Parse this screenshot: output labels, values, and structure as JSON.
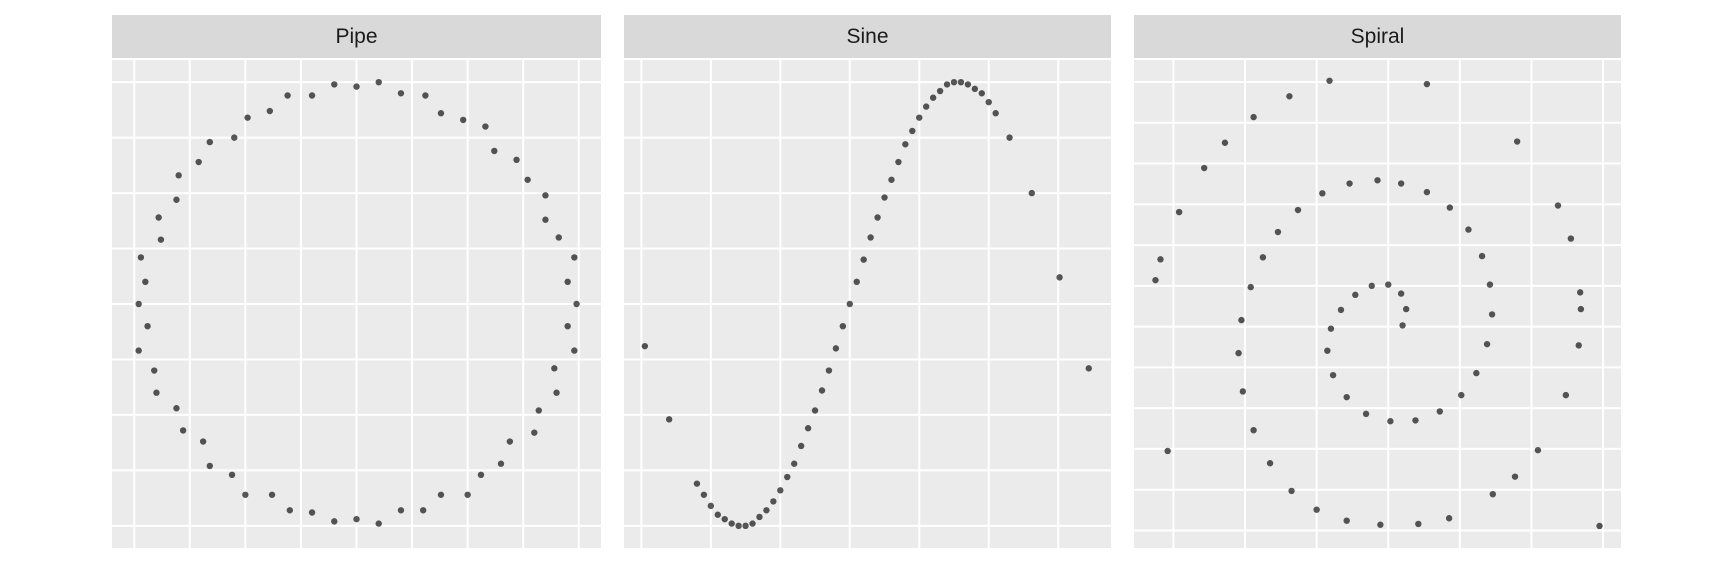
{
  "chart_data": [
    {
      "type": "scatter",
      "title": "Pipe",
      "color": "#000000",
      "opacity": 0.65,
      "grid": true,
      "xlim": [
        -1.1,
        1.1
      ],
      "ylim": [
        -1.1,
        1.1
      ],
      "xticks": [
        -1,
        -0.75,
        -0.5,
        -0.25,
        0,
        0.25,
        0.5,
        0.75,
        1
      ],
      "yticks": [
        -1,
        -0.75,
        -0.5,
        -0.25,
        0,
        0.25,
        0.5,
        0.75,
        1
      ],
      "x": [
        0.99,
        0.95,
        0.98,
        0.91,
        0.85,
        0.85,
        0.77,
        0.72,
        0.62,
        0.58,
        0.48,
        0.38,
        0.31,
        0.2,
        0.1,
        0.0,
        -0.1,
        -0.2,
        -0.31,
        -0.39,
        -0.49,
        -0.55,
        -0.66,
        -0.71,
        -0.8,
        -0.81,
        -0.89,
        -0.88,
        -0.97,
        -0.95,
        -0.98,
        -0.94,
        -0.98,
        -0.91,
        -0.9,
        -0.81,
        -0.78,
        -0.69,
        -0.66,
        -0.56,
        -0.5,
        -0.38,
        -0.3,
        -0.2,
        -0.1,
        0.0,
        0.1,
        0.2,
        0.3,
        0.38,
        0.5,
        0.56,
        0.65,
        0.69,
        0.8,
        0.82,
        0.9,
        0.89,
        0.98,
        0.95
      ],
      "y": [
        0.0,
        0.1,
        0.21,
        0.3,
        0.38,
        0.49,
        0.56,
        0.65,
        0.69,
        0.8,
        0.83,
        0.86,
        0.94,
        0.95,
        1.0,
        0.98,
        0.99,
        0.94,
        0.94,
        0.87,
        0.84,
        0.75,
        0.73,
        0.64,
        0.58,
        0.47,
        0.39,
        0.29,
        0.21,
        0.1,
        0.0,
        -0.1,
        -0.21,
        -0.3,
        -0.4,
        -0.47,
        -0.57,
        -0.62,
        -0.73,
        -0.77,
        -0.86,
        -0.86,
        -0.93,
        -0.94,
        -0.98,
        -0.97,
        -0.99,
        -0.93,
        -0.93,
        -0.86,
        -0.86,
        -0.77,
        -0.72,
        -0.62,
        -0.58,
        -0.48,
        -0.4,
        -0.29,
        -0.21,
        -0.1
      ]
    },
    {
      "type": "scatter",
      "title": "Sine",
      "color": "#000000",
      "opacity": 0.65,
      "grid": true,
      "xlim": [
        -3.25,
        3.76
      ],
      "ylim": [
        -1.1,
        1.1
      ],
      "xticks": [
        -3,
        -2,
        -1,
        0,
        1,
        2,
        3
      ],
      "yticks": [
        -1,
        -0.75,
        -0.5,
        -0.25,
        0,
        0.25,
        0.5,
        0.75,
        1
      ],
      "x": [
        -2.95,
        -2.6,
        -2.2,
        -2.1,
        -2.0,
        -1.9,
        -1.8,
        -1.7,
        -1.6,
        -1.5,
        -1.4,
        -1.3,
        -1.2,
        -1.1,
        -1.0,
        -0.9,
        -0.8,
        -0.7,
        -0.6,
        -0.5,
        -0.4,
        -0.3,
        -0.2,
        -0.1,
        0,
        0.1,
        0.2,
        0.3,
        0.4,
        0.5,
        0.6,
        0.7,
        0.8,
        0.9,
        1.0,
        1.1,
        1.2,
        1.3,
        1.4,
        1.5,
        1.6,
        1.7,
        1.8,
        1.9,
        2.0,
        2.1,
        2.3,
        2.62,
        3.02,
        3.44
      ],
      "y": [
        -0.19,
        -0.52,
        -0.81,
        -0.86,
        -0.91,
        -0.95,
        -0.97,
        -0.99,
        -1.0,
        -1.0,
        -0.99,
        -0.96,
        -0.93,
        -0.89,
        -0.84,
        -0.78,
        -0.72,
        -0.64,
        -0.56,
        -0.48,
        -0.39,
        -0.3,
        -0.2,
        -0.1,
        0,
        0.1,
        0.2,
        0.3,
        0.39,
        0.48,
        0.56,
        0.64,
        0.72,
        0.78,
        0.84,
        0.89,
        0.93,
        0.96,
        0.99,
        1.0,
        1.0,
        0.99,
        0.97,
        0.95,
        0.91,
        0.86,
        0.75,
        0.5,
        0.12,
        -0.29
      ]
    },
    {
      "type": "scatter",
      "title": "Spiral",
      "color": "#000000",
      "opacity": 0.65,
      "grid": true,
      "xlim": [
        -3.55,
        3.25
      ],
      "ylim": [
        -5.43,
        6.54
      ],
      "xticks": [
        -3,
        -2,
        -1,
        0,
        1,
        2,
        3
      ],
      "yticks": [
        -5,
        -4,
        -3,
        -2,
        -1,
        0,
        1,
        2,
        3,
        4,
        5,
        6
      ],
      "x": [
        0.2,
        0.25,
        0.18,
        0.0,
        -0.23,
        -0.46,
        -0.66,
        -0.8,
        -0.85,
        -0.77,
        -0.58,
        -0.31,
        0.03,
        0.38,
        0.72,
        1.02,
        1.23,
        1.38,
        1.45,
        1.42,
        1.31,
        1.12,
        0.86,
        0.54,
        0.18,
        -0.15,
        -0.54,
        -0.92,
        -1.26,
        -1.54,
        -1.75,
        -1.92,
        -2.05,
        -2.09,
        -2.03,
        -1.88,
        -1.65,
        -1.35,
        -1.0,
        -0.58,
        -0.11,
        0.42,
        0.85,
        1.46,
        1.77,
        2.09,
        2.48,
        2.66,
        2.69,
        2.68,
        2.55,
        2.37,
        1.8,
        0.54,
        -0.82,
        -1.38,
        -1.88,
        -2.28,
        -2.57,
        -2.92,
        -3.18,
        -3.25,
        -3.08,
        2.95
      ],
      "y": [
        0.03,
        0.43,
        0.81,
        1.03,
        1.0,
        0.78,
        0.41,
        -0.05,
        -0.59,
        -1.19,
        -1.73,
        -2.14,
        -2.32,
        -2.3,
        -2.08,
        -1.68,
        -1.14,
        -0.43,
        0.3,
        1.03,
        1.73,
        2.38,
        2.92,
        3.3,
        3.51,
        3.59,
        3.51,
        3.27,
        2.86,
        2.32,
        1.7,
        0.97,
        0.16,
        -0.65,
        -1.59,
        -2.54,
        -3.35,
        -4.03,
        -4.49,
        -4.76,
        -4.86,
        -4.84,
        -4.7,
        -4.11,
        -3.68,
        -3.03,
        -1.68,
        -0.46,
        0.43,
        0.84,
        2.16,
        2.97,
        4.54,
        5.95,
        6.03,
        5.65,
        5.14,
        4.51,
        3.89,
        2.81,
        1.65,
        1.14,
        -3.05,
        -4.89
      ]
    }
  ]
}
